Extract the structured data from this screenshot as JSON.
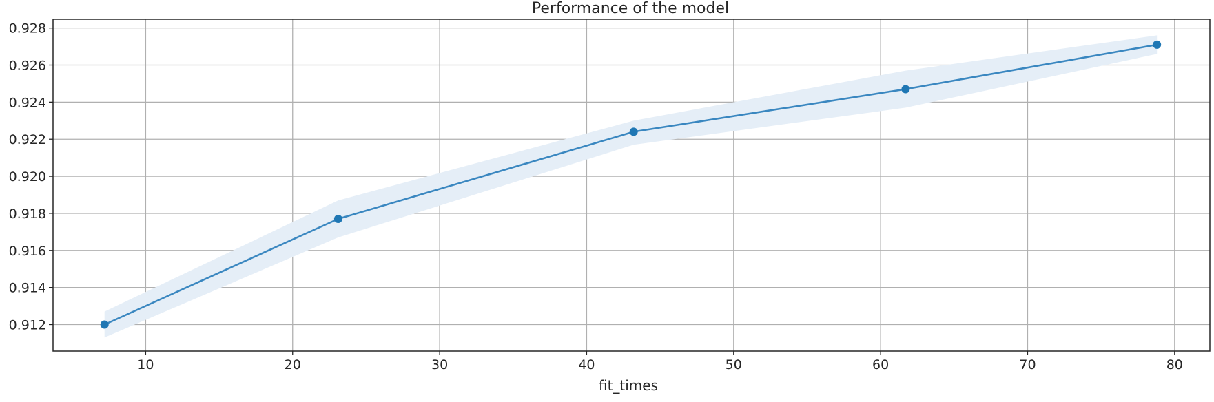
{
  "chart_data": {
    "type": "line",
    "title": "Performance of the model",
    "xlabel": "fit_times",
    "ylabel": "",
    "xlim": [
      3.7,
      82.4
    ],
    "ylim": [
      0.91057,
      0.92847
    ],
    "x_ticks": [
      10,
      20,
      30,
      40,
      50,
      60,
      70,
      80
    ],
    "x_tick_labels": [
      "10",
      "20",
      "30",
      "40",
      "50",
      "60",
      "70",
      "80"
    ],
    "y_ticks": [
      0.912,
      0.914,
      0.916,
      0.918,
      0.92,
      0.922,
      0.924,
      0.926,
      0.928
    ],
    "y_tick_labels": [
      "0.912",
      "0.914",
      "0.916",
      "0.918",
      "0.920",
      "0.922",
      "0.924",
      "0.926",
      "0.928"
    ],
    "grid": true,
    "series": [
      {
        "x": [
          7.2,
          23.1,
          43.2,
          61.7,
          78.8
        ],
        "y": [
          0.912,
          0.9177,
          0.9224,
          0.9247,
          0.9271
        ],
        "band": [
          {
            "x": 7.2,
            "upper": 0.9127,
            "lower": 0.9113
          },
          {
            "x": 23.1,
            "upper": 0.9187,
            "lower": 0.9167
          },
          {
            "x": 43.2,
            "upper": 0.923,
            "lower": 0.9217
          },
          {
            "x": 61.7,
            "upper": 0.9257,
            "lower": 0.9237
          },
          {
            "x": 78.8,
            "upper": 0.9276,
            "lower": 0.9266
          }
        ]
      }
    ],
    "colors": {
      "line": "#3a87c0",
      "marker": "#1f77b4",
      "band": "#e5eef7"
    }
  }
}
